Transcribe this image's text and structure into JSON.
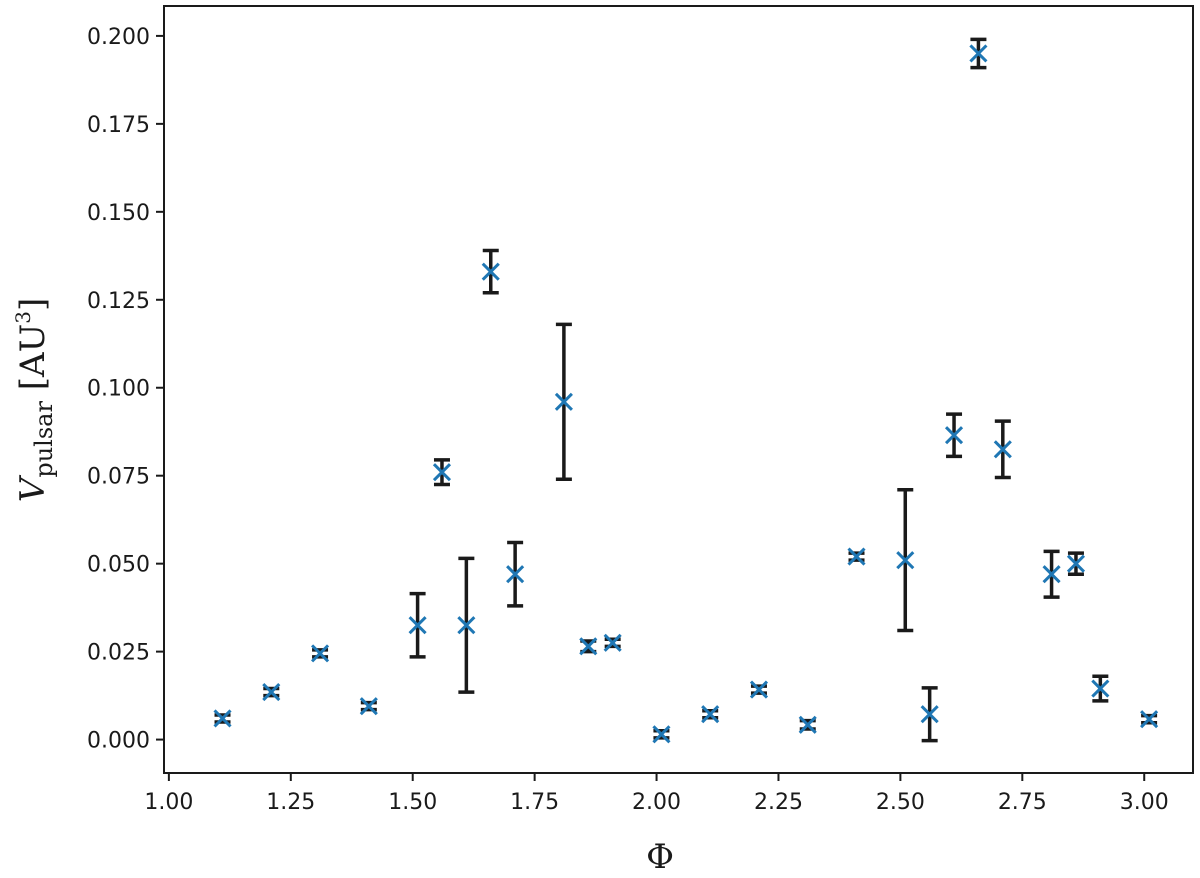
{
  "chart_data": {
    "type": "scatter",
    "xlabel": "Φ",
    "ylabel": {
      "main": "V",
      "subscript": "pulsar",
      "unit_open": " [AU",
      "unit_sup": "3",
      "unit_close": "]"
    },
    "xlim": [
      0.99,
      3.1
    ],
    "ylim": [
      -0.0095,
      0.2085
    ],
    "x_ticks": [
      1.0,
      1.25,
      1.5,
      1.75,
      2.0,
      2.25,
      2.5,
      2.75,
      3.0
    ],
    "x_tick_labels": [
      "1.00",
      "1.25",
      "1.50",
      "1.75",
      "2.00",
      "2.25",
      "2.50",
      "2.75",
      "3.00"
    ],
    "y_ticks": [
      0.0,
      0.025,
      0.05,
      0.075,
      0.1,
      0.125,
      0.15,
      0.175,
      0.2
    ],
    "y_tick_labels": [
      "0.000",
      "0.025",
      "0.050",
      "0.075",
      "0.100",
      "0.125",
      "0.150",
      "0.175",
      "0.200"
    ],
    "marker_color": "#1f77b4",
    "errorbar_color": "#1a1a1a",
    "marker": "x",
    "grid": false,
    "points": [
      {
        "x": 1.11,
        "y": 0.006,
        "err": 0.001
      },
      {
        "x": 1.21,
        "y": 0.0135,
        "err": 0.001
      },
      {
        "x": 1.31,
        "y": 0.0245,
        "err": 0.001
      },
      {
        "x": 1.41,
        "y": 0.0095,
        "err": 0.001
      },
      {
        "x": 1.51,
        "y": 0.0325,
        "err": 0.009
      },
      {
        "x": 1.56,
        "y": 0.076,
        "err": 0.0035
      },
      {
        "x": 1.61,
        "y": 0.0325,
        "err": 0.019
      },
      {
        "x": 1.66,
        "y": 0.133,
        "err": 0.006
      },
      {
        "x": 1.71,
        "y": 0.047,
        "err": 0.009
      },
      {
        "x": 1.81,
        "y": 0.096,
        "err": 0.022
      },
      {
        "x": 1.86,
        "y": 0.0265,
        "err": 0.0015
      },
      {
        "x": 1.91,
        "y": 0.0275,
        "err": 0.001
      },
      {
        "x": 2.01,
        "y": 0.0015,
        "err": 0.001
      },
      {
        "x": 2.11,
        "y": 0.0072,
        "err": 0.001
      },
      {
        "x": 2.21,
        "y": 0.0142,
        "err": 0.001
      },
      {
        "x": 2.31,
        "y": 0.0042,
        "err": 0.0012
      },
      {
        "x": 2.41,
        "y": 0.052,
        "err": 0.001
      },
      {
        "x": 2.51,
        "y": 0.051,
        "err": 0.02
      },
      {
        "x": 2.56,
        "y": 0.0072,
        "err": 0.0075
      },
      {
        "x": 2.61,
        "y": 0.0865,
        "err": 0.006
      },
      {
        "x": 2.66,
        "y": 0.195,
        "err": 0.004
      },
      {
        "x": 2.71,
        "y": 0.0825,
        "err": 0.008
      },
      {
        "x": 2.81,
        "y": 0.047,
        "err": 0.0065
      },
      {
        "x": 2.86,
        "y": 0.05,
        "err": 0.003
      },
      {
        "x": 2.91,
        "y": 0.0145,
        "err": 0.0035
      },
      {
        "x": 3.01,
        "y": 0.0058,
        "err": 0.001
      }
    ]
  }
}
